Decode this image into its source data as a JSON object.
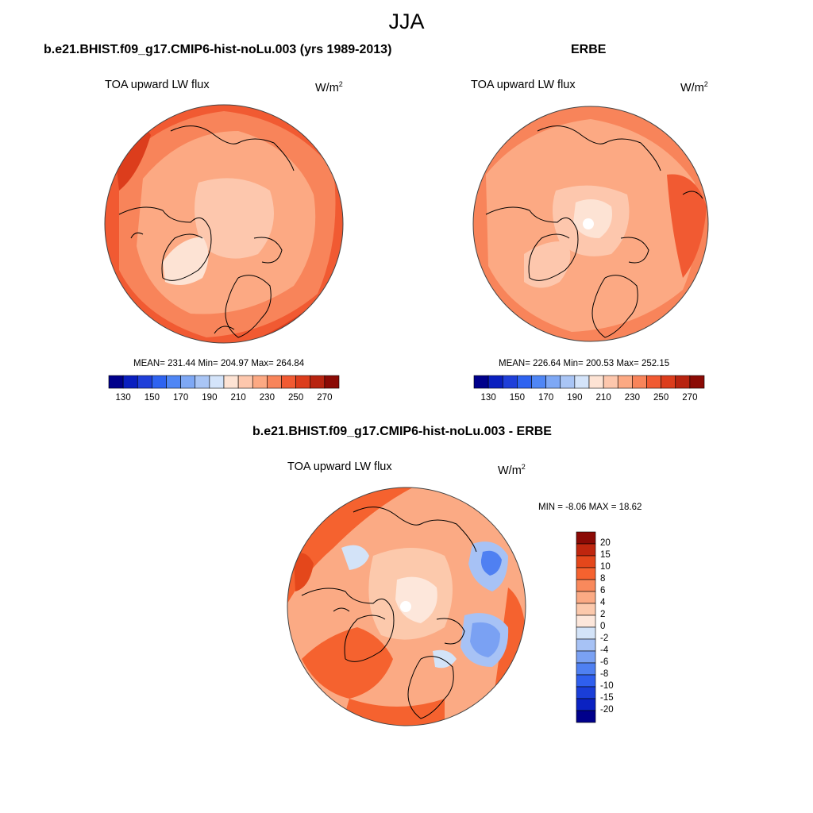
{
  "figure": {
    "title": "JJA"
  },
  "panels": {
    "model": {
      "title": "b.e21.BHIST.f09_g17.CMIP6-hist-noLu.003 (yrs 1989-2013)",
      "left_string": "TOA upward LW flux",
      "units_base": "W/m",
      "units_exp": "2",
      "stats": "MEAN= 231.44  Min= 204.97  Max= 264.84"
    },
    "obs": {
      "title": "ERBE",
      "left_string": "TOA upward LW flux",
      "units_base": "W/m",
      "units_exp": "2",
      "stats": "MEAN= 226.64  Min= 200.53  Max= 252.15"
    },
    "diff": {
      "title": "b.e21.BHIST.f09_g17.CMIP6-hist-noLu.003 - ERBE",
      "left_string": "TOA upward LW flux",
      "units_base": "W/m",
      "units_exp": "2",
      "stats": "MIN =  -8.06 MAX =  18.62"
    }
  },
  "colorbars": {
    "abs": {
      "colors": [
        "#00008b",
        "#0a1fbf",
        "#1f3fd9",
        "#2e63f0",
        "#4f86f5",
        "#7ea8f5",
        "#a9c5f5",
        "#d4e4fa",
        "#fde3d4",
        "#fdc7ad",
        "#fca983",
        "#f8845a",
        "#f15a32",
        "#dc3d1c",
        "#b82410",
        "#8b0a05"
      ],
      "labels": [
        "130",
        "150",
        "170",
        "190",
        "210",
        "230",
        "250",
        "270"
      ]
    },
    "diff": {
      "colors": [
        "#00008b",
        "#0a22c2",
        "#1a3ed8",
        "#2f5fee",
        "#4f80f2",
        "#7aa1f3",
        "#a7c2f5",
        "#d3e3f8",
        "#fde7db",
        "#fcc9ac",
        "#fbaa84",
        "#f9895c",
        "#f5622f",
        "#e4471b",
        "#bf260e",
        "#8b0a05"
      ],
      "labels": [
        "20",
        "15",
        "10",
        "8",
        "6",
        "4",
        "2",
        "0",
        "-2",
        "-4",
        "-6",
        "-8",
        "-10",
        "-15",
        "-20"
      ]
    }
  }
}
